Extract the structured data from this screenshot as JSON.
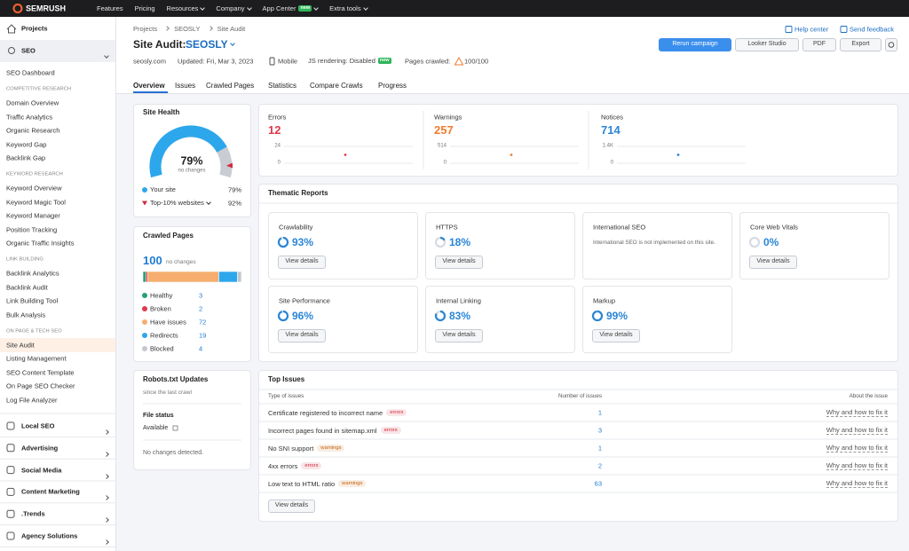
{
  "top_nav": {
    "logo": "SEMRUSH",
    "items": [
      "Features",
      "Pricing",
      "Resources",
      "Company",
      "App Center",
      "Extra tools"
    ],
    "badge": "new"
  },
  "sidebar": {
    "top": "Projects",
    "seo": "SEO",
    "dashboard": "SEO Dashboard",
    "groups": [
      {
        "title": "COMPETITIVE RESEARCH",
        "items": [
          "Domain Overview",
          "Traffic Analytics",
          "Organic Research",
          "Keyword Gap",
          "Backlink Gap"
        ]
      },
      {
        "title": "KEYWORD RESEARCH",
        "items": [
          "Keyword Overview",
          "Keyword Magic Tool",
          "Keyword Manager",
          "Position Tracking",
          "Organic Traffic Insights"
        ]
      },
      {
        "title": "LINK BUILDING",
        "items": [
          "Backlink Analytics",
          "Backlink Audit",
          "Link Building Tool",
          "Bulk Analysis"
        ]
      },
      {
        "title": "ON PAGE & TECH SEO",
        "items": [
          "Site Audit",
          "Listing Management",
          "SEO Content Template",
          "On Page SEO Checker",
          "Log File Analyzer"
        ]
      }
    ],
    "sections": [
      "Local SEO",
      "Advertising",
      "Social Media",
      "Content Marketing",
      ".Trends",
      "Agency Solutions"
    ]
  },
  "header": {
    "breadcrumbs": [
      "Projects",
      "SEOSLY",
      "Site Audit"
    ],
    "title": "Site Audit:",
    "project": "SEOSLY",
    "links": [
      "Help center",
      "Send feedback"
    ],
    "buttons": [
      "Rerun campaign",
      "Looker Studio",
      "PDF",
      "Export"
    ],
    "meta": {
      "domain": "seosly.com",
      "updated": "Updated: Fri, Mar 3, 2023",
      "device": "Mobile",
      "js": "JS rendering: Disabled",
      "js_badge": "new",
      "pages_label": "Pages crawled:",
      "pages": "100/100"
    },
    "tabs": [
      "Overview",
      "Issues",
      "Crawled Pages",
      "Statistics",
      "Compare Crawls",
      "Progress"
    ]
  },
  "site_health": {
    "title": "Site Health",
    "note": "no changes",
    "scale": [
      0,
      100
    ],
    "legend": [
      {
        "name": "Your site",
        "value": 79,
        "value_label": "79%",
        "color": "#2ca7ec"
      },
      {
        "name": "Top-10% websites",
        "value": 92,
        "value_label": "92%",
        "color": "#d1293d"
      }
    ]
  },
  "crawled_pages": {
    "title": "Crawled Pages",
    "total": 100,
    "note": "no changes",
    "rows": [
      {
        "name": "Healthy",
        "value": 3,
        "color": "#25a36f"
      },
      {
        "name": "Broken",
        "value": 2,
        "color": "#e0394d"
      },
      {
        "name": "Have issues",
        "value": 72,
        "color": "#f6ad6e"
      },
      {
        "name": "Redirects",
        "value": 19,
        "color": "#2ca7ec"
      },
      {
        "name": "Blocked",
        "value": 4,
        "color": "#c4c7cf"
      }
    ]
  },
  "summary": [
    {
      "title": "Errors",
      "value": 12,
      "color": "#e0394d",
      "ylim": [
        0,
        24
      ],
      "yticks": [
        0,
        24
      ]
    },
    {
      "title": "Warnings",
      "value": 257,
      "color": "#f07c2e",
      "ylim": [
        0,
        514
      ],
      "yticks": [
        0,
        514
      ]
    },
    {
      "title": "Notices",
      "value": 714,
      "color": "#2a86d6",
      "ylim": [
        0,
        1428
      ],
      "yticks": [
        0,
        {
          "value": 1428,
          "label": "1.4K"
        }
      ]
    }
  ],
  "thematic": {
    "title": "Thematic Reports",
    "button": "View details",
    "scale": [
      0,
      100
    ],
    "color": "#2a86d6",
    "reports": [
      {
        "name": "Crawlability",
        "value": 93,
        "value_label": "93%"
      },
      {
        "name": "HTTPS",
        "value": 18,
        "value_label": "18%"
      },
      {
        "name": "International SEO",
        "note": "International SEO is not implemented on this site."
      },
      {
        "name": "Core Web Vitals",
        "value": 0,
        "value_label": "0%"
      },
      {
        "name": "Site Performance",
        "value": 96,
        "value_label": "96%"
      },
      {
        "name": "Internal Linking",
        "value": 83,
        "value_label": "83%"
      },
      {
        "name": "Markup",
        "value": 99,
        "value_label": "99%"
      }
    ]
  },
  "robots": {
    "title": "Robots.txt Updates",
    "subtitle": "since the last crawl",
    "file_status_label": "File status",
    "file_status": "Available",
    "changes": "No changes detected."
  },
  "top_issues": {
    "title": "Top Issues",
    "columns": [
      "Type of issues",
      "Number of issues",
      "About the issue"
    ],
    "link": "Why and how to fix it",
    "button": "View details",
    "rows": [
      {
        "issue": "Certificate registered to incorrect name",
        "tag": "errors",
        "tag_color": "#d1293d",
        "count": 1
      },
      {
        "issue": "Incorrect pages found in sitemap.xml",
        "tag": "errors",
        "tag_color": "#d1293d",
        "count": 3
      },
      {
        "issue": "No SNI support",
        "tag": "warnings",
        "tag_color": "#c4620c",
        "count": 1
      },
      {
        "issue": "4xx errors",
        "tag": "errors",
        "tag_color": "#d1293d",
        "count": 2
      },
      {
        "issue": "Low text to HTML ratio",
        "tag": "warnings",
        "tag_color": "#c4620c",
        "count": 63
      }
    ]
  }
}
